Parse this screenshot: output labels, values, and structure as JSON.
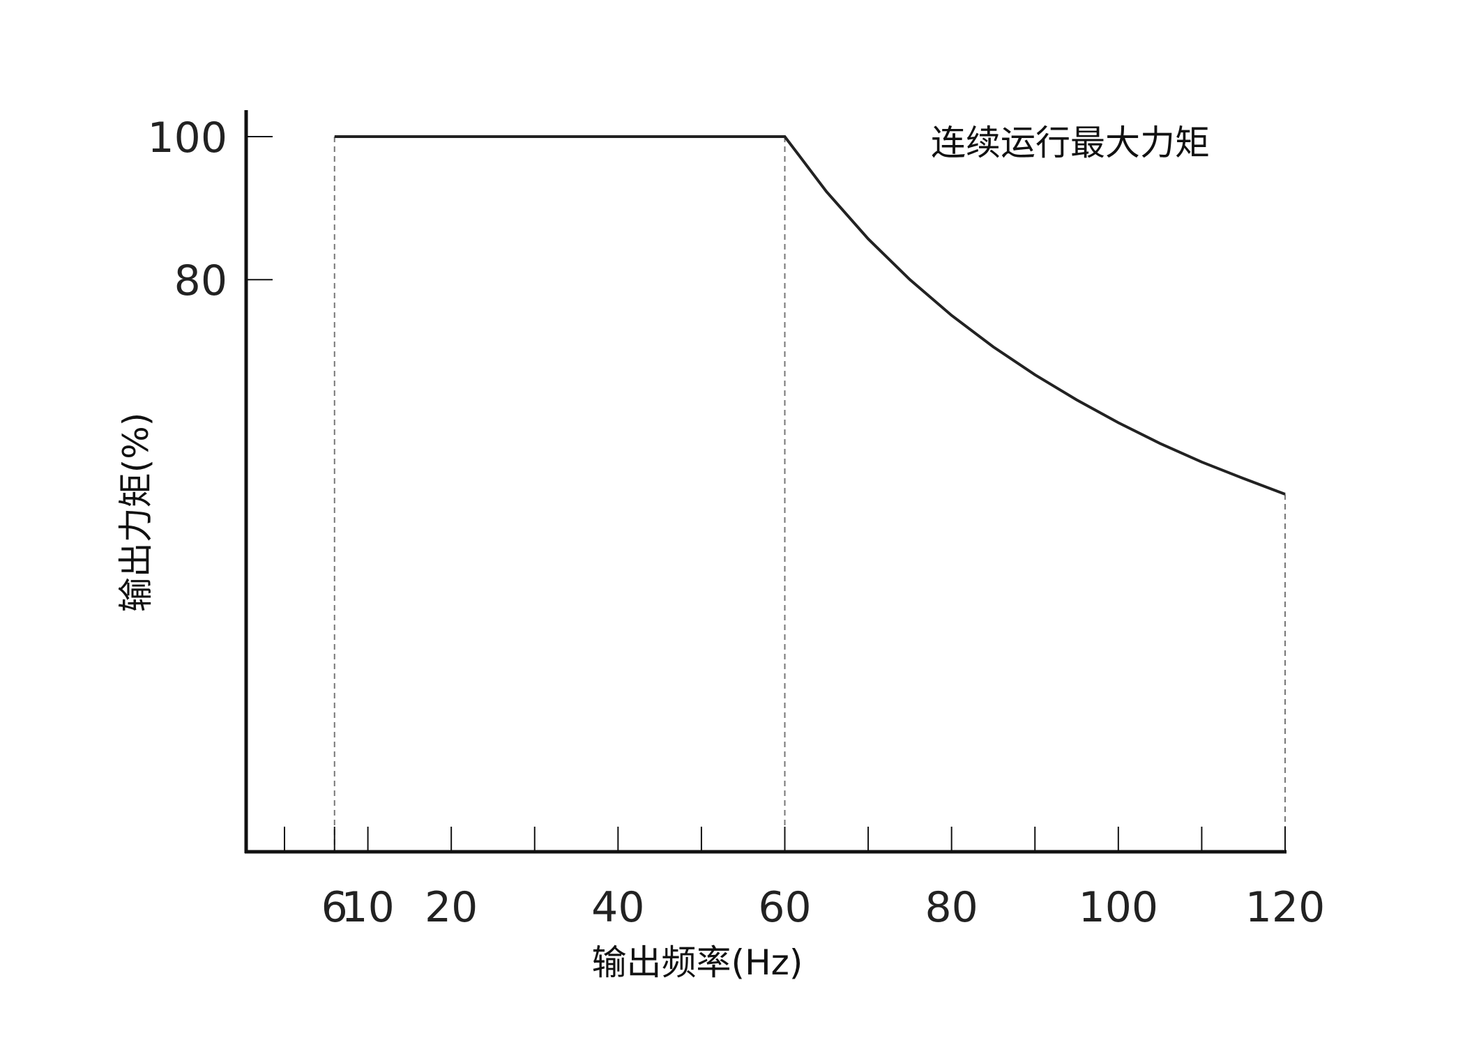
{
  "chart_data": {
    "type": "line",
    "title": "",
    "xlabel": "输出频率(Hz)",
    "ylabel": "输出力矩(%)",
    "annotation": "连续运行最大力矩",
    "x_tick_labels": [
      "6",
      "10",
      "20",
      "40",
      "60",
      "80",
      "100",
      "120"
    ],
    "x_ticks": [
      0,
      6,
      10,
      20,
      30,
      40,
      50,
      60,
      70,
      80,
      90,
      100,
      110,
      120
    ],
    "y_tick_labels": [
      "100",
      "80"
    ],
    "y_ticks": [
      100,
      80
    ],
    "xlim": [
      -4.6,
      120
    ],
    "ylim": [
      0,
      100
    ],
    "reference_lines_x": [
      6,
      60,
      120
    ],
    "series": [
      {
        "values": [
          {
            "x": 6,
            "y": 100
          },
          {
            "x": 60,
            "y": 100
          },
          {
            "x": 65,
            "y": 92.3
          },
          {
            "x": 70,
            "y": 85.7
          },
          {
            "x": 75,
            "y": 80
          },
          {
            "x": 80,
            "y": 75
          },
          {
            "x": 85,
            "y": 70.6
          },
          {
            "x": 90,
            "y": 66.7
          },
          {
            "x": 95,
            "y": 63.2
          },
          {
            "x": 100,
            "y": 60
          },
          {
            "x": 105,
            "y": 57.1
          },
          {
            "x": 110,
            "y": 54.5
          },
          {
            "x": 115,
            "y": 52.2
          },
          {
            "x": 120,
            "y": 50
          }
        ]
      }
    ],
    "grid": false,
    "colors": {
      "line": "#222222",
      "axis": "#111111",
      "reference": "#777777"
    }
  }
}
